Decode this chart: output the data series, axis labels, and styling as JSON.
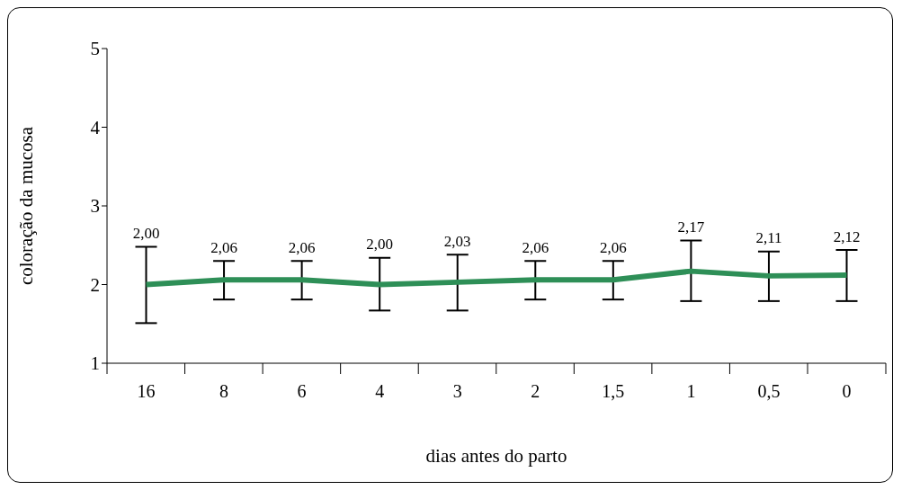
{
  "chart_data": {
    "type": "line",
    "xlabel": "dias antes do parto",
    "ylabel": "coloração da mucosa",
    "categories": [
      "16",
      "8",
      "6",
      "4",
      "3",
      "2",
      "1,5",
      "1",
      "0,5",
      "0"
    ],
    "series": [
      {
        "color": "#2e8f57",
        "values": [
          2.0,
          2.06,
          2.06,
          2.0,
          2.03,
          2.06,
          2.06,
          2.17,
          2.11,
          2.12
        ],
        "errors": [
          [
            1.51,
            2.48
          ],
          [
            1.81,
            2.3
          ],
          [
            1.81,
            2.3
          ],
          [
            1.67,
            2.34
          ],
          [
            1.67,
            2.38
          ],
          [
            1.81,
            2.3
          ],
          [
            1.81,
            2.3
          ],
          [
            1.79,
            2.56
          ],
          [
            1.79,
            2.42
          ],
          [
            1.79,
            2.44
          ]
        ],
        "value_labels": [
          "2,00",
          "2,06",
          "2,06",
          "2,00",
          "2,03",
          "2,06",
          "2,06",
          "2,17",
          "2,11",
          "2,12"
        ]
      }
    ],
    "ylim": [
      1,
      5
    ],
    "yticks": [
      1,
      2,
      3,
      4,
      5
    ],
    "marker": "none",
    "line_style": "solid"
  }
}
